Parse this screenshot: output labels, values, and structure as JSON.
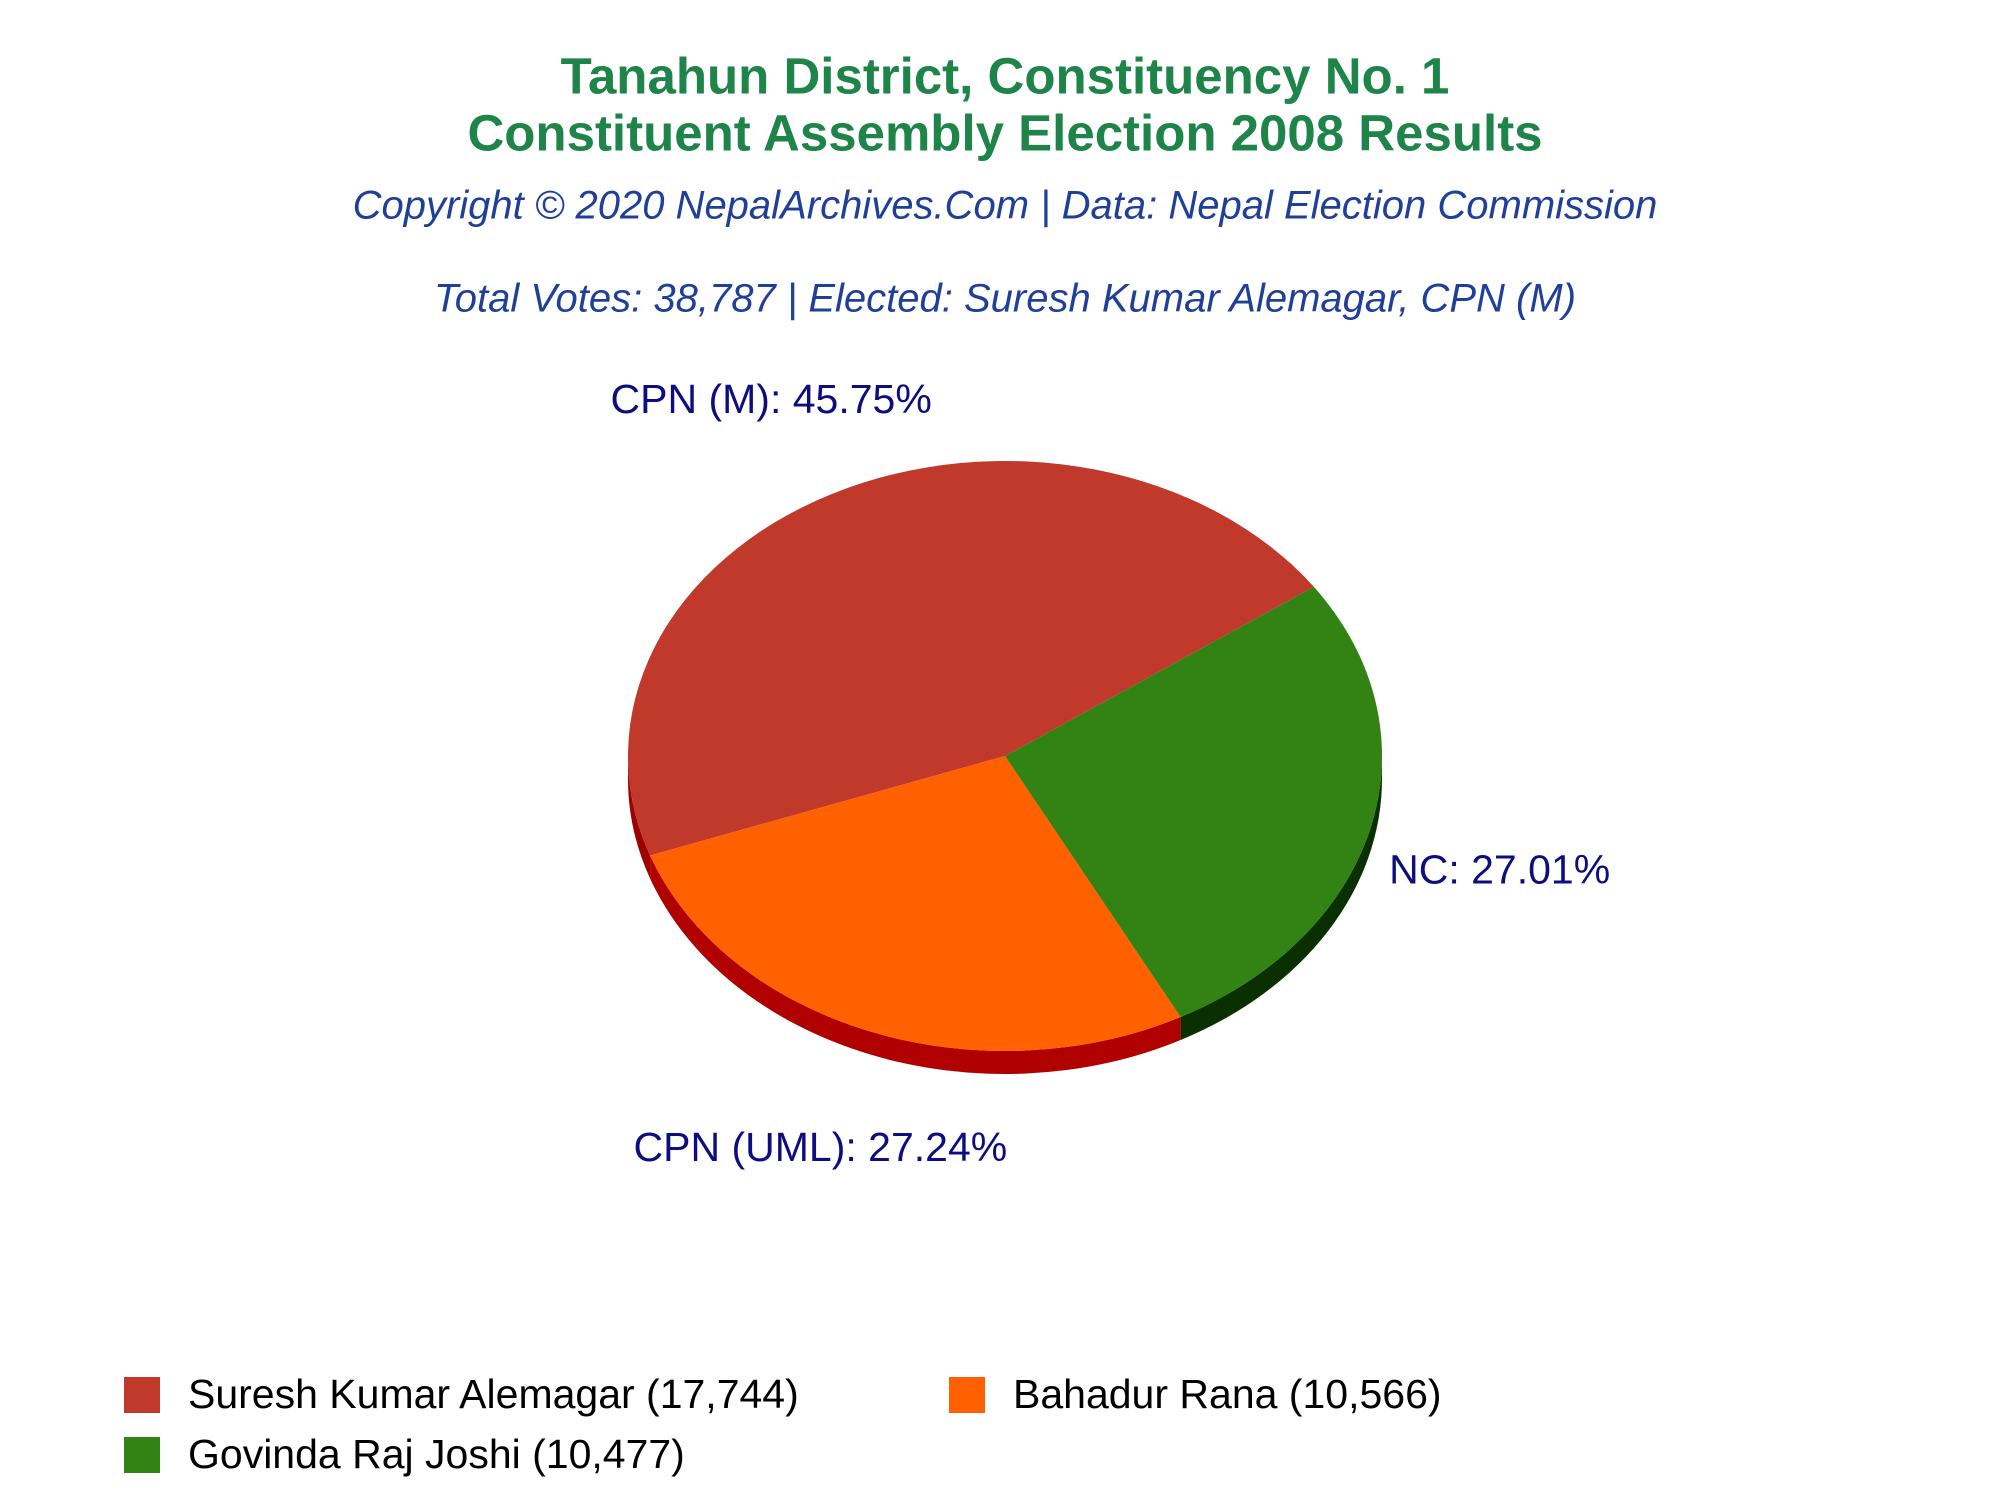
{
  "chart_data": {
    "type": "pie",
    "title": [
      "Tanahun District, Constituency No. 1",
      "Constituent Assembly Election 2008 Results"
    ],
    "subtitle": [
      "Copyright © 2020 NepalArchives.Com | Data: Nepal Election Commission",
      "Total Votes: 38,787 | Elected: Suresh Kumar Alemagar, CPN (M)"
    ],
    "categories": [
      "Suresh Kumar Alemagar (17,744)",
      "Bahadur Rana (10,566)",
      "Govinda Raj Joshi (10,477)"
    ],
    "values": [
      45.75,
      27.24,
      27.01
    ],
    "value_labels": [
      "CPN (M): 45.75%",
      "CPN (UML): 27.24%",
      "NC: 27.01%"
    ],
    "colors": [
      "#c0392b",
      "#ff6000",
      "#328214"
    ],
    "side_colors": [
      "#a00000",
      "#b00000",
      "#0a3000"
    ],
    "legend": "bottom"
  }
}
